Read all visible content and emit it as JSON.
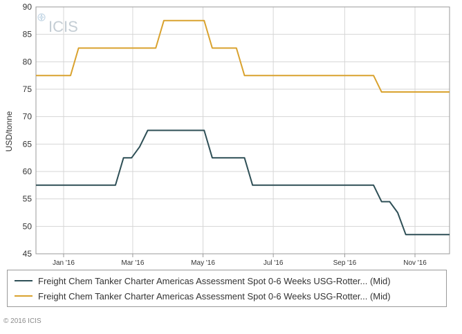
{
  "watermark": {
    "text": "ICIS"
  },
  "copyright": "© 2016 ICIS",
  "colors": {
    "series_1": "#2e4f56",
    "series_2": "#d9a22e",
    "grid": "#d6d6d6",
    "axis": "#9a9a9a"
  },
  "chart_data": {
    "type": "line",
    "title": "",
    "xlabel": "",
    "ylabel": "USD/tonne",
    "ylim": [
      45,
      90
    ],
    "yticks": [
      45,
      50,
      55,
      60,
      65,
      70,
      75,
      80,
      85,
      90
    ],
    "xlim": [
      "2015-12-08",
      "2016-12-01"
    ],
    "xticks": [
      {
        "label": "Jan '16",
        "date": "2016-01-01"
      },
      {
        "label": "Mar '16",
        "date": "2016-03-01"
      },
      {
        "label": "May '16",
        "date": "2016-05-01"
      },
      {
        "label": "Jul '16",
        "date": "2016-07-01"
      },
      {
        "label": "Sep '16",
        "date": "2016-09-01"
      },
      {
        "label": "Nov '16",
        "date": "2016-11-01"
      }
    ],
    "grid": true,
    "legend_position": "bottom",
    "series": [
      {
        "name": "Freight Chem Tanker Charter Americas Assessment Spot 0-6 Weeks USG-Rotter... (Mid)",
        "color": "#2e4f56",
        "points": [
          [
            "2015-12-08",
            57.5
          ],
          [
            "2016-02-15",
            57.5
          ],
          [
            "2016-02-22",
            62.5
          ],
          [
            "2016-02-29",
            62.5
          ],
          [
            "2016-03-07",
            64.5
          ],
          [
            "2016-03-14",
            67.5
          ],
          [
            "2016-05-02",
            67.5
          ],
          [
            "2016-05-09",
            62.5
          ],
          [
            "2016-06-06",
            62.5
          ],
          [
            "2016-06-13",
            57.5
          ],
          [
            "2016-09-26",
            57.5
          ],
          [
            "2016-10-03",
            54.5
          ],
          [
            "2016-10-10",
            54.5
          ],
          [
            "2016-10-17",
            52.5
          ],
          [
            "2016-10-24",
            48.5
          ],
          [
            "2016-12-01",
            48.5
          ]
        ]
      },
      {
        "name": "Freight Chem Tanker Charter Americas Assessment Spot 0-6 Weeks USG-Rotter... (Mid)",
        "color": "#d9a22e",
        "points": [
          [
            "2015-12-08",
            77.5
          ],
          [
            "2016-01-07",
            77.5
          ],
          [
            "2016-01-14",
            82.5
          ],
          [
            "2016-03-21",
            82.5
          ],
          [
            "2016-03-28",
            87.5
          ],
          [
            "2016-05-02",
            87.5
          ],
          [
            "2016-05-09",
            82.5
          ],
          [
            "2016-05-30",
            82.5
          ],
          [
            "2016-06-06",
            77.5
          ],
          [
            "2016-09-26",
            77.5
          ],
          [
            "2016-10-03",
            74.5
          ],
          [
            "2016-12-01",
            74.5
          ]
        ]
      }
    ]
  }
}
